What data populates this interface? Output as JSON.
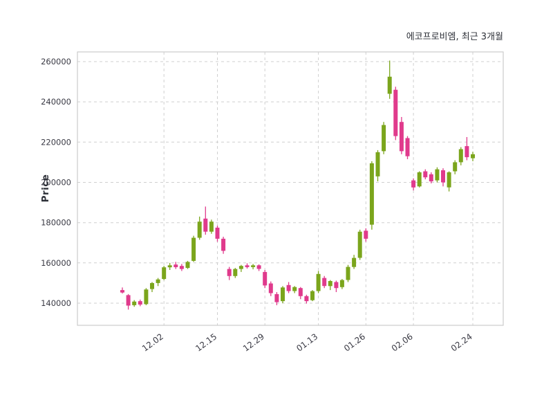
{
  "chart_data": {
    "type": "candlestick",
    "title": "에코프로비엠, 최근 3개월",
    "ylabel": "Price",
    "ylim": [
      129000,
      264800
    ],
    "yticks": [
      140000,
      160000,
      180000,
      200000,
      220000,
      240000,
      260000
    ],
    "xticks": [
      {
        "i": 7,
        "label": "12.02"
      },
      {
        "i": 16,
        "label": "12.15"
      },
      {
        "i": 24,
        "label": "12.29"
      },
      {
        "i": 33,
        "label": "01.13"
      },
      {
        "i": 41,
        "label": "01.26"
      },
      {
        "i": 49,
        "label": "02.06"
      },
      {
        "i": 59,
        "label": "02.24"
      }
    ],
    "grid": "dashed-both-axes",
    "legend": "none",
    "colors": {
      "up": "#7BA51C",
      "down": "#E03A8C",
      "grid": "#CFCFCF",
      "spine": "#CCCCCC",
      "text": "#3A3A44"
    },
    "columns": [
      "open",
      "high",
      "low",
      "close"
    ],
    "candles": [
      [
        146500,
        147800,
        144800,
        145300
      ],
      [
        144000,
        144500,
        136800,
        138800
      ],
      [
        139000,
        141500,
        138200,
        140800
      ],
      [
        141000,
        141800,
        138500,
        139300
      ],
      [
        139500,
        147500,
        139000,
        146800
      ],
      [
        147000,
        150500,
        145500,
        150000
      ],
      [
        150000,
        152500,
        148500,
        151800
      ],
      [
        152000,
        158500,
        151500,
        157800
      ],
      [
        157800,
        160000,
        156500,
        158800
      ],
      [
        159200,
        160500,
        157000,
        157900
      ],
      [
        158500,
        159500,
        156000,
        157000
      ],
      [
        157500,
        161000,
        157000,
        160500
      ],
      [
        161000,
        173500,
        160500,
        172500
      ],
      [
        172500,
        183000,
        171500,
        180500
      ],
      [
        182000,
        188000,
        174000,
        175500
      ],
      [
        175500,
        181500,
        174500,
        180500
      ],
      [
        177500,
        178500,
        170500,
        172000
      ],
      [
        172000,
        173000,
        164500,
        166000
      ],
      [
        157000,
        158000,
        151500,
        153500
      ],
      [
        153500,
        157500,
        152500,
        157000
      ],
      [
        157000,
        159000,
        155500,
        158500
      ],
      [
        158800,
        159800,
        157200,
        157900
      ],
      [
        157900,
        159500,
        156800,
        158800
      ],
      [
        158800,
        159300,
        156000,
        157000
      ],
      [
        155500,
        156500,
        147500,
        148800
      ],
      [
        149800,
        150800,
        143500,
        145000
      ],
      [
        144500,
        145500,
        139000,
        140500
      ],
      [
        141000,
        148500,
        140000,
        147800
      ],
      [
        149000,
        150500,
        145000,
        146000
      ],
      [
        146000,
        148500,
        145000,
        148000
      ],
      [
        147500,
        148000,
        142000,
        143500
      ],
      [
        143500,
        144200,
        139800,
        141000
      ],
      [
        141500,
        146500,
        141000,
        146000
      ],
      [
        146000,
        156000,
        145000,
        154500
      ],
      [
        152500,
        153500,
        147500,
        148500
      ],
      [
        148500,
        151500,
        146500,
        151000
      ],
      [
        150500,
        151200,
        145500,
        147500
      ],
      [
        148000,
        152000,
        147000,
        151500
      ],
      [
        151500,
        159000,
        150500,
        158000
      ],
      [
        158000,
        164000,
        157000,
        162500
      ],
      [
        162500,
        176500,
        161500,
        175500
      ],
      [
        176000,
        177200,
        170500,
        172000
      ],
      [
        179000,
        210500,
        176500,
        209500
      ],
      [
        203000,
        216000,
        200500,
        215000
      ],
      [
        215500,
        230000,
        214000,
        228500
      ],
      [
        244000,
        260500,
        241500,
        252500
      ],
      [
        246000,
        247500,
        221000,
        223000
      ],
      [
        230000,
        232500,
        214000,
        215500
      ],
      [
        222000,
        223000,
        211500,
        213000
      ],
      [
        201000,
        202000,
        196000,
        197500
      ],
      [
        198000,
        205500,
        197500,
        205000
      ],
      [
        205500,
        206500,
        201500,
        202500
      ],
      [
        204000,
        205000,
        199500,
        200500
      ],
      [
        201000,
        207500,
        200000,
        206500
      ],
      [
        206000,
        207000,
        198000,
        200000
      ],
      [
        197500,
        205500,
        195500,
        205000
      ],
      [
        205500,
        211000,
        204000,
        210000
      ],
      [
        210000,
        217500,
        208500,
        216500
      ],
      [
        218000,
        222500,
        211000,
        212500
      ],
      [
        212000,
        215200,
        210500,
        214000
      ]
    ]
  }
}
